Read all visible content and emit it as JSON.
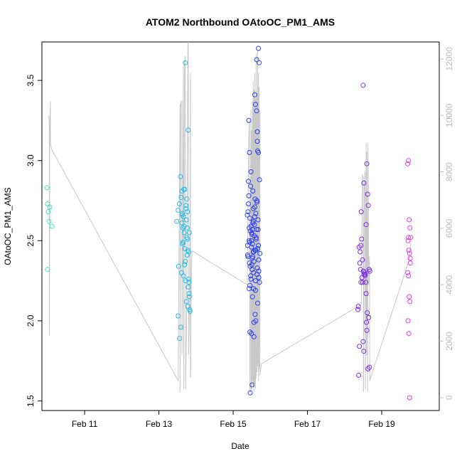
{
  "chart_data": {
    "type": "scatter",
    "title": "ATOM2 Northbound OAtoOC_PM1_AMS",
    "xlabel": "Date",
    "ylabel": "OAtoOC_PM1_AMS",
    "x_unit": "days since Feb 10 00:00",
    "xlim": [
      -0.15,
      10.55
    ],
    "ylim": [
      1.44,
      3.74
    ],
    "y2lim": [
      -455,
      12600
    ],
    "x_ticks": [
      {
        "value": 1,
        "label": "Feb 11"
      },
      {
        "value": 3,
        "label": "Feb 13"
      },
      {
        "value": 5,
        "label": "Feb 15"
      },
      {
        "value": 7,
        "label": "Feb 17"
      },
      {
        "value": 9,
        "label": "Feb 19"
      }
    ],
    "y_ticks": [
      {
        "value": 1.5,
        "label": "1.5"
      },
      {
        "value": 2.0,
        "label": "2.0"
      },
      {
        "value": 2.5,
        "label": "2.5"
      },
      {
        "value": 3.0,
        "label": "3.0"
      },
      {
        "value": 3.5,
        "label": "3.5"
      }
    ],
    "y2_ticks": [
      {
        "value": 0,
        "label": "0"
      },
      {
        "value": 2000,
        "label": "2000"
      },
      {
        "value": 4000,
        "label": "4000"
      },
      {
        "value": 6000,
        "label": "6000"
      },
      {
        "value": 8000,
        "label": "8000"
      },
      {
        "value": 10000,
        "label": "10000"
      },
      {
        "value": 12000,
        "label": "12000"
      }
    ],
    "colors": {
      "axis": "#000000",
      "altitude_line": "#c8c8c8",
      "altitude_axis": "#bbbbbb",
      "flight1": "#3fe0c0",
      "flight2": "#22bde8",
      "flight3": "#2a40f0",
      "flight4": "#7a2ce6",
      "flight5": "#dc3ce0"
    },
    "series": [
      {
        "name": "scatter-feb10",
        "color_key": "flight1",
        "x": [
          -0.02,
          0.0,
          0.02,
          0.04,
          0.06,
          0.12,
          0.0
        ],
        "y": [
          2.83,
          2.73,
          2.68,
          2.62,
          2.71,
          2.59,
          2.32
        ]
      },
      {
        "name": "scatter-feb13",
        "color_key": "flight2",
        "x": [
          3.48,
          3.52,
          3.55,
          3.58,
          3.6,
          3.62,
          3.63,
          3.65,
          3.66,
          3.67,
          3.68,
          3.7,
          3.71,
          3.72,
          3.73,
          3.74,
          3.75,
          3.76,
          3.77,
          3.78,
          3.79,
          3.8,
          3.81,
          3.82,
          3.83,
          3.61,
          3.64,
          3.69,
          3.74,
          3.78,
          3.71,
          3.65,
          3.59,
          3.56,
          3.52,
          3.62,
          3.75,
          3.68,
          3.73,
          3.8,
          3.66,
          3.77,
          3.79,
          3.84,
          3.63,
          3.7,
          3.76,
          3.82,
          3.53,
          3.81
        ],
        "y": [
          2.62,
          2.69,
          2.73,
          2.9,
          2.77,
          2.81,
          2.67,
          2.58,
          2.65,
          2.82,
          2.55,
          2.45,
          2.37,
          2.25,
          2.7,
          2.63,
          2.52,
          2.58,
          2.68,
          2.44,
          2.21,
          2.26,
          2.17,
          2.15,
          2.07,
          2.3,
          2.48,
          2.35,
          2.12,
          2.09,
          3.61,
          2.49,
          1.96,
          1.89,
          2.03,
          2.61,
          2.76,
          2.59,
          2.72,
          2.43,
          2.28,
          2.51,
          3.19,
          2.06,
          2.66,
          2.82,
          2.41,
          2.55,
          2.34,
          2.24
        ]
      },
      {
        "name": "scatter-feb15",
        "color_key": "flight3",
        "x": [
          5.38,
          5.39,
          5.4,
          5.41,
          5.42,
          5.43,
          5.44,
          5.45,
          5.46,
          5.47,
          5.48,
          5.49,
          5.5,
          5.51,
          5.52,
          5.53,
          5.54,
          5.55,
          5.56,
          5.57,
          5.58,
          5.59,
          5.6,
          5.61,
          5.62,
          5.63,
          5.64,
          5.65,
          5.66,
          5.67,
          5.68,
          5.69,
          5.7,
          5.71,
          5.72,
          5.4,
          5.42,
          5.44,
          5.46,
          5.48,
          5.5,
          5.52,
          5.54,
          5.56,
          5.58,
          5.6,
          5.62,
          5.64,
          5.66,
          5.68,
          5.41,
          5.43,
          5.45,
          5.47,
          5.49,
          5.51,
          5.53,
          5.55,
          5.57,
          5.59,
          5.61,
          5.63,
          5.65,
          5.67,
          5.69,
          5.39,
          5.44,
          5.49,
          5.54,
          5.59,
          5.64,
          5.69,
          5.46,
          5.51,
          5.56,
          5.61,
          5.66,
          5.71,
          5.43,
          5.48,
          5.53,
          5.58,
          5.63,
          5.68,
          5.5,
          5.55,
          5.6,
          5.45,
          5.65,
          5.52
        ],
        "y": [
          2.66,
          2.41,
          2.4,
          2.87,
          3.25,
          2.58,
          2.49,
          2.22,
          2.34,
          2.28,
          2.93,
          2.46,
          2.55,
          2.32,
          2.57,
          2.81,
          2.43,
          2.2,
          1.99,
          2.6,
          3.41,
          2.76,
          3.35,
          2.44,
          2.51,
          3.63,
          2.29,
          3.18,
          3.06,
          2.63,
          3.7,
          2.38,
          3.61,
          2.88,
          2.42,
          2.68,
          2.78,
          3.05,
          2.56,
          2.26,
          2.35,
          2.48,
          2.7,
          2.37,
          2.65,
          2.19,
          2.52,
          2.74,
          2.45,
          3.05,
          2.73,
          2.2,
          1.93,
          2.84,
          2.5,
          2.39,
          2.61,
          2.3,
          2.53,
          2.44,
          2.67,
          3.31,
          2.33,
          2.57,
          2.27,
          2.47,
          2.36,
          1.92,
          2.62,
          2.04,
          2.75,
          2.31,
          1.55,
          1.6,
          1.9,
          2.0,
          2.11,
          2.24,
          2.5,
          2.59,
          2.4,
          2.71,
          2.57,
          2.47,
          2.54,
          2.43,
          2.25,
          2.64,
          3.12,
          2.15
        ]
      },
      {
        "name": "scatter-feb18",
        "color_key": "flight4",
        "x": [
          8.36,
          8.38,
          8.4,
          8.42,
          8.44,
          8.46,
          8.48,
          8.5,
          8.52,
          8.54,
          8.56,
          8.58,
          8.6,
          8.62,
          8.64,
          8.66,
          8.68,
          8.37,
          8.41,
          8.45,
          8.49,
          8.53,
          8.57,
          8.61,
          8.65,
          8.39,
          8.43,
          8.47,
          8.51,
          8.55,
          8.59,
          8.63,
          8.67,
          8.44,
          8.52,
          8.6,
          8.5,
          8.58
        ],
        "y": [
          2.07,
          1.66,
          1.84,
          2.43,
          2.47,
          2.51,
          2.38,
          3.47,
          2.86,
          2.3,
          2.29,
          2.6,
          2.98,
          2.79,
          2.72,
          2.32,
          2.31,
          2.09,
          2.36,
          2.68,
          2.24,
          2.29,
          2.24,
          2.05,
          2.02,
          2.46,
          2.32,
          2.27,
          2.31,
          2.28,
          1.99,
          1.7,
          1.71,
          2.24,
          1.81,
          1.94,
          1.87,
          2.17
        ]
      },
      {
        "name": "scatter-feb19",
        "color_key": "flight5",
        "x": [
          9.7,
          9.72,
          9.74,
          9.76,
          9.78,
          9.71,
          9.73,
          9.75,
          9.77,
          9.7,
          9.72,
          9.74,
          9.76,
          9.71,
          9.73,
          9.75,
          9.77,
          9.72
        ],
        "y": [
          2.98,
          3.0,
          2.63,
          2.58,
          2.52,
          2.5,
          2.44,
          2.42,
          2.36,
          2.3,
          2.28,
          2.15,
          2.12,
          2.0,
          1.92,
          1.52,
          2.39,
          2.52
        ]
      }
    ],
    "altitude_line": {
      "axis": "right",
      "x": [
        0.04,
        0.05,
        0.05,
        0.06,
        0.06,
        0.08,
        0.08,
        0.11,
        3.52,
        3.57,
        3.57,
        3.59,
        3.62,
        3.62,
        3.64,
        3.66,
        3.67,
        3.69,
        3.71,
        3.72,
        3.75,
        3.78,
        3.79,
        3.8,
        3.83,
        3.85,
        3.85,
        3.86,
        3.86,
        3.88,
        3.89,
        5.38,
        5.42,
        5.44,
        5.45,
        5.46,
        5.48,
        5.48,
        5.5,
        5.5,
        5.52,
        5.52,
        5.54,
        5.54,
        5.56,
        5.56,
        5.58,
        5.58,
        5.6,
        5.6,
        5.62,
        5.62,
        5.64,
        5.64,
        5.66,
        5.66,
        5.68,
        5.68,
        5.7,
        5.7,
        5.72,
        5.72,
        5.76,
        8.45,
        8.48,
        8.5,
        8.51,
        8.53,
        8.55,
        8.56,
        8.58,
        8.59,
        8.6,
        8.62,
        8.63,
        8.65,
        8.67,
        8.68,
        8.7,
        9.72,
        9.76,
        9.78
      ],
      "y": [
        10000,
        9500,
        2200,
        6500,
        9500,
        10500,
        9000,
        8800,
        600,
        10400,
        200,
        10500,
        10500,
        1500,
        5200,
        11800,
        300,
        11900,
        12100,
        300,
        3000,
        12500,
        12600,
        1500,
        3500,
        11500,
        700,
        1100,
        2800,
        4800,
        5200,
        4000,
        9200,
        9800,
        200,
        4500,
        10200,
        200,
        9500,
        300,
        10500,
        600,
        11200,
        400,
        10900,
        200,
        11500,
        500,
        10600,
        300,
        12200,
        700,
        10800,
        900,
        12300,
        1100,
        11500,
        600,
        11000,
        1000,
        10200,
        800,
        1200,
        3300,
        7900,
        7800,
        200,
        7500,
        8000,
        300,
        9000,
        1500,
        8700,
        200,
        9000,
        4000,
        5000,
        600,
        700,
        4800,
        5100,
        5500
      ]
    }
  }
}
